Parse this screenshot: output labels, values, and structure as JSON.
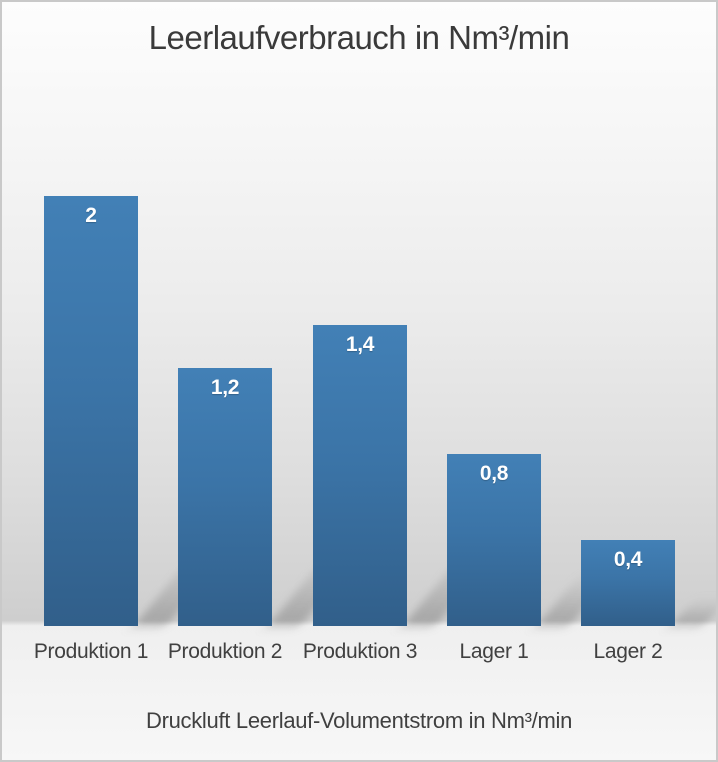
{
  "chart_data": {
    "type": "bar",
    "title": "Leerlaufverbrauch in Nm³/min",
    "categories": [
      "Produktion 1",
      "Produktion 2",
      "Produktion 3",
      "Lager 1",
      "Lager 2"
    ],
    "values": [
      2,
      1.2,
      1.4,
      0.8,
      0.4
    ],
    "value_labels": [
      "2",
      "1,2",
      "1,4",
      "0,8",
      "0,4"
    ],
    "xlabel": "Druckluft Leerlauf-Volumentstrom in Nm³/min",
    "ylabel": "",
    "ylim": [
      0,
      2
    ],
    "grid": false,
    "axes_visible": false,
    "legend": "none",
    "value_label_position": "inside-top",
    "series_name": "Leerlauf-Volumenstrom"
  },
  "colors": {
    "bar_top": "#4280b6",
    "bar_mid": "#3b74a7",
    "bar_bottom": "#315f8a",
    "value_label": "#ffffff",
    "text": "#404040",
    "wall_dark": "#cecece",
    "floor": "#f2f2f2",
    "border": "#c9c9c9"
  }
}
